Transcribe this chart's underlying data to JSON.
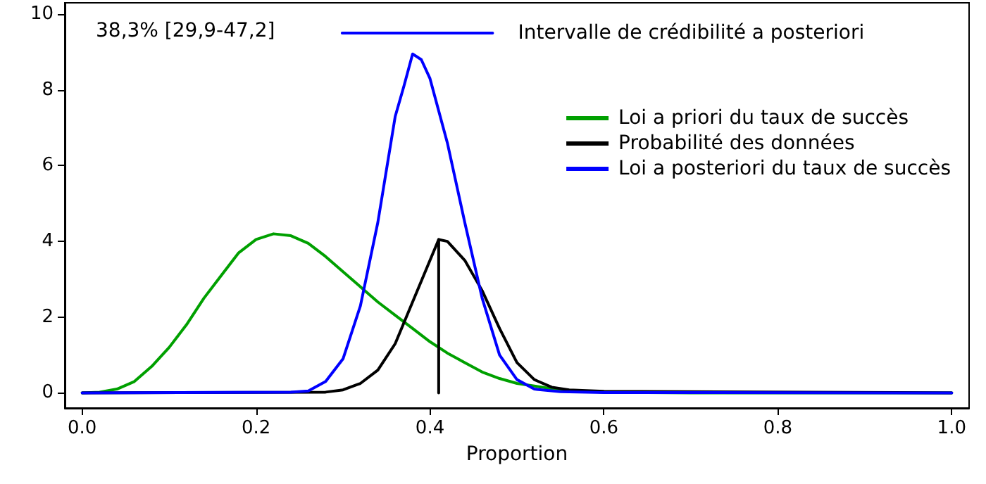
{
  "chart_data": {
    "type": "line",
    "xlabel": "Proportion",
    "xlim": [
      -0.02,
      1.02
    ],
    "ylim": [
      -0.4,
      10.3
    ],
    "xticks": [
      {
        "value": 0,
        "label": "0.0"
      },
      {
        "value": 0.2,
        "label": "0.2"
      },
      {
        "value": 0.4,
        "label": "0.4"
      },
      {
        "value": 0.6,
        "label": "0.6"
      },
      {
        "value": 0.8,
        "label": "0.8"
      },
      {
        "value": 1,
        "label": "1.0"
      }
    ],
    "yticks": [
      0,
      2,
      4,
      6,
      8,
      10
    ],
    "grid": false,
    "legend": "top right",
    "marker": "none",
    "line_style": "solid",
    "annotations": [
      "38,3% [29,9-47,2]"
    ],
    "series": [
      {
        "name": "Loi a priori du taux de succès",
        "color": "#00a000",
        "x": [
          0,
          0.02,
          0.04,
          0.06,
          0.08,
          0.1,
          0.12,
          0.14,
          0.16,
          0.18,
          0.2,
          0.22,
          0.24,
          0.26,
          0.28,
          0.3,
          0.32,
          0.34,
          0.36,
          0.38,
          0.4,
          0.42,
          0.44,
          0.46,
          0.48,
          0.5,
          0.55,
          0.6,
          0.7,
          1
        ],
        "values": [
          0,
          0.02,
          0.1,
          0.3,
          0.7,
          1.2,
          1.8,
          2.5,
          3.1,
          3.7,
          4.05,
          4.2,
          4.15,
          3.95,
          3.6,
          3.2,
          2.8,
          2.4,
          2.05,
          1.7,
          1.35,
          1.05,
          0.8,
          0.55,
          0.38,
          0.25,
          0.08,
          0.02,
          0,
          0
        ]
      },
      {
        "name": "Probabilité des données",
        "color": "#000000",
        "x": [
          0,
          0.28,
          0.3,
          0.32,
          0.34,
          0.36,
          0.38,
          0.4,
          0.41,
          0.42,
          0.44,
          0.46,
          0.48,
          0.5,
          0.52,
          0.54,
          0.56,
          0.6,
          1
        ],
        "values": [
          0,
          0.02,
          0.08,
          0.25,
          0.6,
          1.3,
          2.4,
          3.5,
          4.05,
          4,
          3.5,
          2.7,
          1.7,
          0.8,
          0.35,
          0.15,
          0.08,
          0.04,
          0
        ]
      },
      {
        "name": "Loi a posteriori du taux de succès",
        "color": "#0000ff",
        "x": [
          0,
          0.24,
          0.26,
          0.28,
          0.3,
          0.32,
          0.34,
          0.36,
          0.37,
          0.38,
          0.39,
          0.4,
          0.42,
          0.44,
          0.46,
          0.48,
          0.5,
          0.52,
          0.55,
          0.6,
          1
        ],
        "values": [
          0,
          0.02,
          0.05,
          0.3,
          0.9,
          2.3,
          4.5,
          7.3,
          8.1,
          8.95,
          8.8,
          8.3,
          6.6,
          4.5,
          2.5,
          1,
          0.35,
          0.1,
          0.03,
          0.01,
          0
        ]
      },
      {
        "name": "Intervalle de crédibilité a posteriori",
        "color": "#0000ff",
        "x": [
          0.299,
          0.472
        ],
        "values": [
          9.5,
          9.5
        ]
      },
      {
        "color": "#000000",
        "x": [
          0.41,
          0.41
        ],
        "values": [
          0,
          4.05
        ]
      }
    ]
  }
}
